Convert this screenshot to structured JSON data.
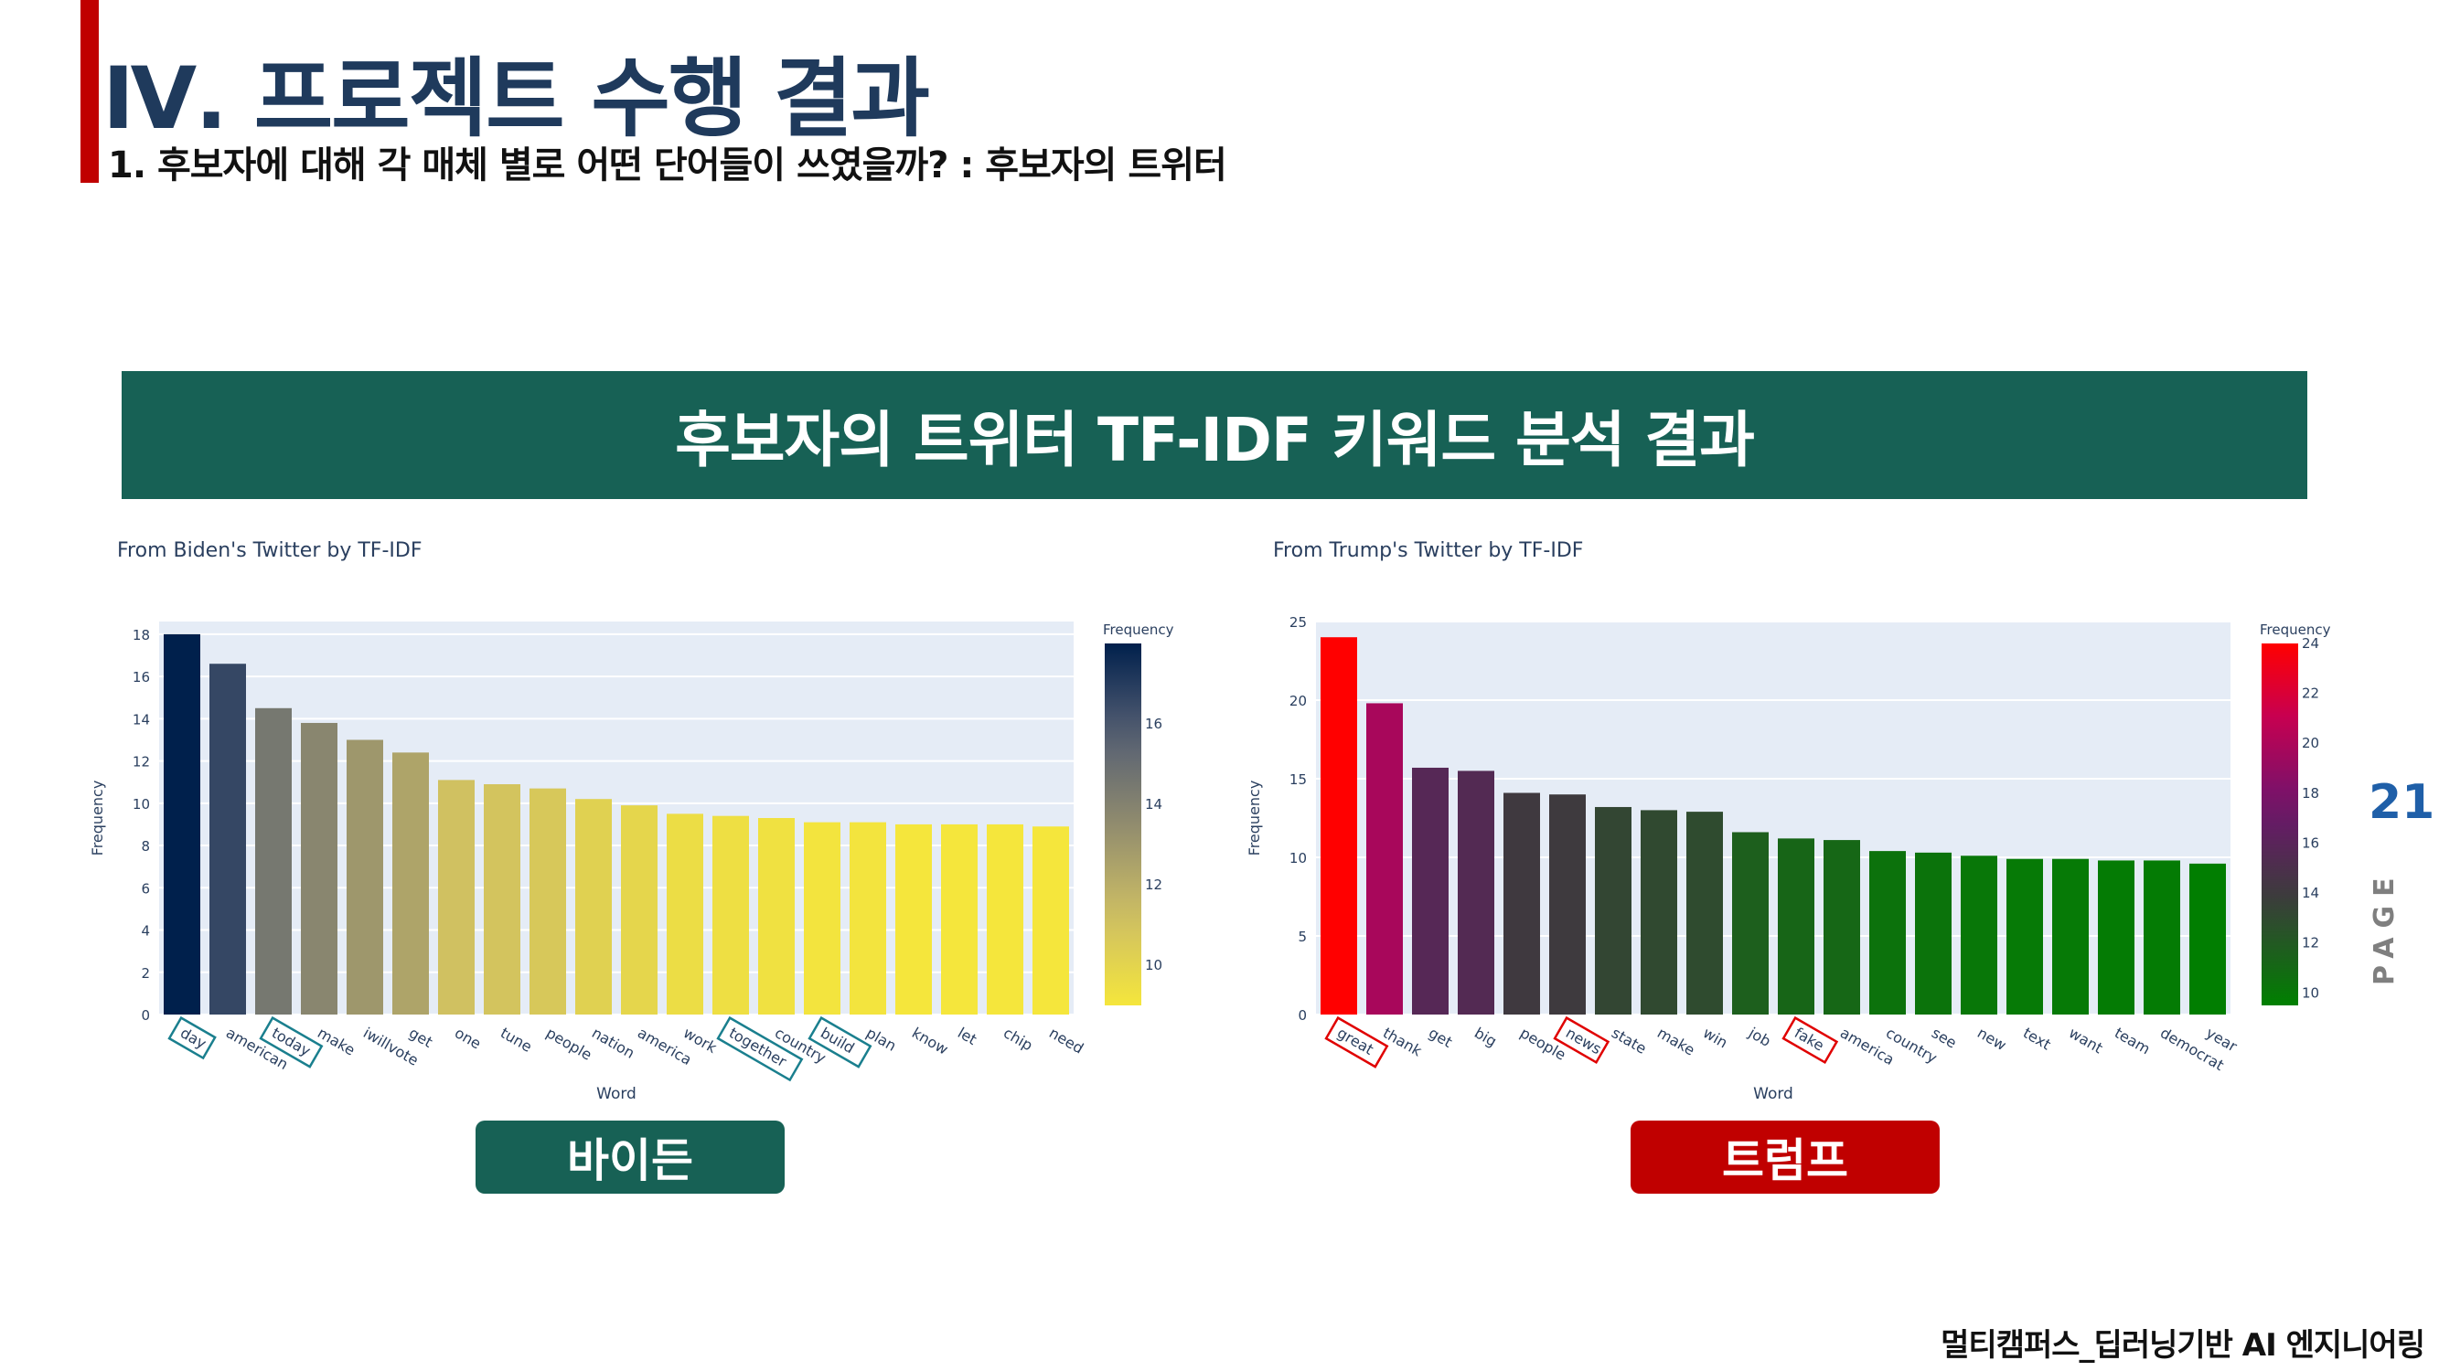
{
  "header": {
    "title": "Ⅳ. 프로젝트 수행 결과",
    "subtitle": "1. 후보자에 대해 각 매체 별로 어떤 단어들이 쓰였을까? : 후보자의 트위터"
  },
  "banner": {
    "text": "후보자의 트위터 TF-IDF 키워드 분석 결과"
  },
  "labels": {
    "left": "바이든",
    "right": "트럼프"
  },
  "page": {
    "number": "21",
    "label": "PAGE"
  },
  "footer": {
    "text": "멀티캠퍼스_딥러닝기반 AI 엔지니어링"
  },
  "colors": {
    "accent": "#c00000",
    "banner": "#176155",
    "biden_label": "#176155",
    "trump_label": "#c00000",
    "plot_bg": "#e5ecf6",
    "title_text": "#1f3a5c",
    "page_number": "#1f5fa8"
  },
  "chart_data": [
    {
      "type": "bar",
      "title": "From Biden's Twitter by TF-IDF",
      "xlabel": "Word",
      "ylabel": "Frequency",
      "ylim": [
        0,
        18.6
      ],
      "yticks": [
        0,
        2,
        4,
        6,
        8,
        10,
        12,
        14,
        16,
        18
      ],
      "colorbar": {
        "title": "Frequency",
        "range": [
          9,
          18
        ],
        "ticks": [
          10,
          12,
          14,
          16
        ],
        "colorscale": "cividis"
      },
      "highlight_color": "#1a7f8e",
      "categories": [
        "day",
        "american",
        "today",
        "make",
        "iwillvote",
        "get",
        "one",
        "tune",
        "people",
        "nation",
        "america",
        "work",
        "together",
        "country",
        "build",
        "plan",
        "know",
        "let",
        "chip",
        "need"
      ],
      "values": [
        18.0,
        16.6,
        14.5,
        13.8,
        13.0,
        12.4,
        11.1,
        10.9,
        10.7,
        10.2,
        9.9,
        9.5,
        9.4,
        9.3,
        9.1,
        9.1,
        9.0,
        9.0,
        9.0,
        8.9
      ],
      "highlighted": [
        "day",
        "today",
        "together",
        "build"
      ]
    },
    {
      "type": "bar",
      "title": "From Trump's Twitter by TF-IDF",
      "xlabel": "Word",
      "ylabel": "Frequency",
      "ylim": [
        0,
        25
      ],
      "yticks": [
        0,
        5,
        10,
        15,
        20,
        25
      ],
      "colorbar": {
        "title": "Frequency",
        "range": [
          9.5,
          24
        ],
        "ticks": [
          10,
          12,
          14,
          16,
          18,
          20,
          22,
          24
        ],
        "colorscale": "green-black-purple-red"
      },
      "highlight_color": "#e00000",
      "categories": [
        "great",
        "thank",
        "get",
        "big",
        "people",
        "news",
        "state",
        "make",
        "win",
        "job",
        "fake",
        "america",
        "country",
        "see",
        "new",
        "text",
        "want",
        "team",
        "democrat",
        "year"
      ],
      "values": [
        24.0,
        19.8,
        15.7,
        15.5,
        14.1,
        14.0,
        13.2,
        13.0,
        12.9,
        11.6,
        11.2,
        11.1,
        10.4,
        10.3,
        10.1,
        9.9,
        9.9,
        9.8,
        9.8,
        9.6
      ],
      "highlighted": [
        "great",
        "news",
        "fake"
      ]
    }
  ]
}
